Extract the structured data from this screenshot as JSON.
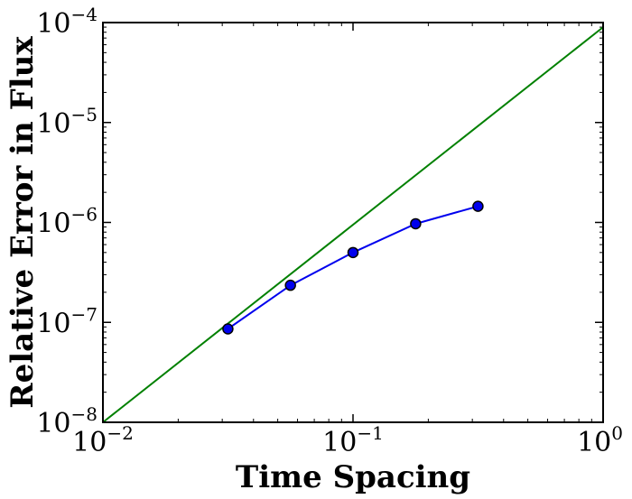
{
  "chart_data": {
    "type": "line",
    "title": "",
    "xlabel": "Time Spacing",
    "ylabel": "Relative Error in Flux",
    "xscale": "log",
    "yscale": "log",
    "xlim": [
      0.01,
      1
    ],
    "ylim": [
      1e-08,
      0.0001
    ],
    "grid": false,
    "legend": "none",
    "x_ticks": [
      {
        "value": 0.01,
        "base": "10",
        "exp": "−2"
      },
      {
        "value": 0.1,
        "base": "10",
        "exp": "−1"
      },
      {
        "value": 1,
        "base": "10",
        "exp": "0"
      }
    ],
    "y_ticks": [
      {
        "value": 1e-08,
        "base": "10",
        "exp": "−8"
      },
      {
        "value": 1e-07,
        "base": "10",
        "exp": "−7"
      },
      {
        "value": 1e-06,
        "base": "10",
        "exp": "−6"
      },
      {
        "value": 1e-05,
        "base": "10",
        "exp": "−5"
      },
      {
        "value": 0.0001,
        "base": "10",
        "exp": "−4"
      }
    ],
    "series": [
      {
        "color": "#0000ee",
        "marker": "circle",
        "x": [
          0.0316,
          0.0562,
          0.1,
          0.178,
          0.316
        ],
        "y": [
          8.6e-08,
          2.35e-07,
          5e-07,
          9.7e-07,
          1.45e-06
        ]
      },
      {
        "color": "#008000",
        "marker": "none",
        "x": [
          0.01,
          1
        ],
        "y": [
          1e-08,
          9e-05
        ]
      }
    ]
  }
}
